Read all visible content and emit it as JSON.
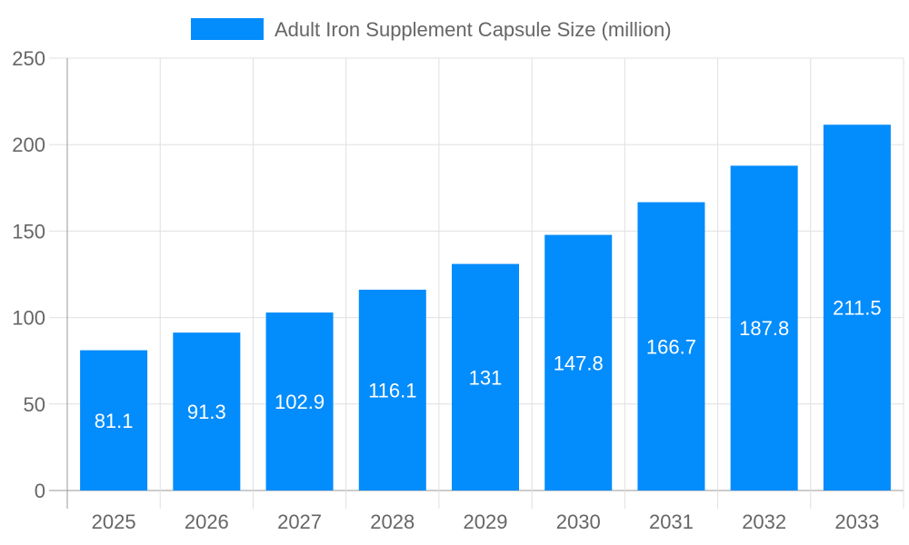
{
  "chart_data": {
    "type": "bar",
    "categories": [
      "2025",
      "2026",
      "2027",
      "2028",
      "2029",
      "2030",
      "2031",
      "2032",
      "2033"
    ],
    "series": [
      {
        "name": "Adult Iron Supplement Capsule Size (million)",
        "values": [
          81.1,
          91.3,
          102.9,
          116.1,
          131,
          147.8,
          166.7,
          187.8,
          211.5
        ],
        "color": "#038cfc"
      }
    ],
    "data_labels": [
      "81.1",
      "91.3",
      "102.9",
      "116.1",
      "131",
      "147.8",
      "166.7",
      "187.8",
      "211.5"
    ],
    "ylim": [
      0,
      250
    ],
    "yticks": [
      "0",
      "50",
      "100",
      "150",
      "200",
      "250"
    ],
    "grid": true,
    "legend": "top-center",
    "xlabel": "",
    "ylabel": ""
  }
}
